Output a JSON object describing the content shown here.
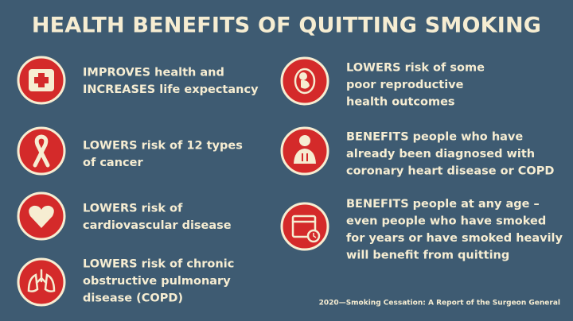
{
  "title": "HEALTH BENEFITS OF QUITTING SMOKING",
  "left_items": [
    {
      "lines": [
        "IMPROVES health and",
        "INCREASES life expectancy"
      ]
    },
    {
      "lines": [
        "LOWERS risk of 12 types",
        "of cancer"
      ]
    },
    {
      "lines": [
        "LOWERS risk of",
        "cardiovascular disease"
      ]
    },
    {
      "lines": [
        "LOWERS risk of chronic",
        "obstructive pulmonary",
        "disease (COPD)"
      ]
    }
  ],
  "right_items": [
    {
      "lines": [
        "LOWERS risk of some",
        "poor reproductive",
        "health outcomes"
      ]
    },
    {
      "lines": [
        "BENEFITS people who have",
        "already been diagnosed with",
        "coronary heart disease or COPD"
      ]
    },
    {
      "lines": [
        "BENEFITS people at any age –",
        "even people who have smoked",
        "for years or have smoked heavily",
        "will benefit from quitting"
      ]
    }
  ],
  "source": "2020—Smoking Cessation: A Report of the Surgeon General"
}
